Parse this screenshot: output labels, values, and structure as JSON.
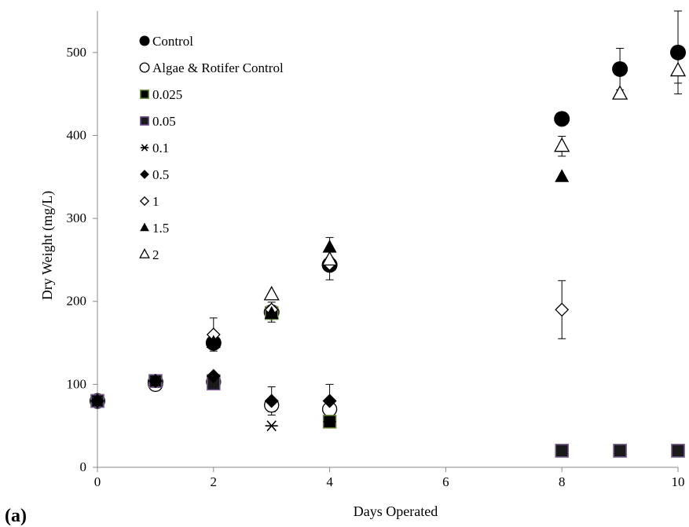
{
  "panel_label": "(a)",
  "chart_data": {
    "type": "scatter",
    "title": "",
    "xlabel": "Days Operated",
    "ylabel": "Dry Weight (mg/L)",
    "xlim": [
      0,
      10
    ],
    "ylim": [
      0,
      550
    ],
    "xticks": [
      0,
      2,
      4,
      6,
      8,
      10
    ],
    "yticks": [
      0,
      100,
      200,
      300,
      400,
      500
    ],
    "grid": false,
    "legend_position": "top-left",
    "series": [
      {
        "name": "Control",
        "marker": "circle-filled",
        "x": [
          0,
          1,
          2,
          3,
          4,
          8,
          9,
          10
        ],
        "y": [
          80,
          103,
          150,
          187,
          244,
          420,
          480,
          500
        ],
        "err": [
          0,
          0,
          5,
          12,
          18,
          0,
          25,
          50
        ]
      },
      {
        "name": "Algae & Rotifer Control",
        "marker": "circle-open",
        "x": [
          0,
          1,
          2,
          3,
          4
        ],
        "y": [
          80,
          100,
          103,
          75,
          70
        ],
        "err": [
          0,
          0,
          0,
          8,
          0
        ]
      },
      {
        "name": "0.025",
        "marker": "square-filled-green",
        "x": [
          0,
          1,
          2,
          3,
          4,
          8,
          9,
          10
        ],
        "y": [
          80,
          104,
          104,
          186,
          55,
          20,
          20,
          20
        ],
        "err": [
          0,
          0,
          0,
          0,
          0,
          0,
          0,
          0
        ]
      },
      {
        "name": "0.05",
        "marker": "square-purple",
        "x": [
          0,
          1,
          2,
          8,
          9,
          10
        ],
        "y": [
          80,
          104,
          101,
          20,
          20,
          20
        ],
        "err": [
          0,
          0,
          0,
          0,
          0,
          0
        ]
      },
      {
        "name": "0.1",
        "marker": "asterisk",
        "x": [
          0,
          1,
          2,
          3,
          4
        ],
        "y": [
          80,
          104,
          150,
          50,
          55
        ],
        "err": [
          0,
          0,
          0,
          0,
          0
        ]
      },
      {
        "name": "0.5",
        "marker": "diamond-filled",
        "x": [
          0,
          1,
          2,
          3,
          4
        ],
        "y": [
          80,
          104,
          110,
          80,
          80
        ],
        "err": [
          0,
          0,
          0,
          17,
          20
        ]
      },
      {
        "name": "1",
        "marker": "diamond-open",
        "x": [
          2,
          3,
          4,
          8
        ],
        "y": [
          160,
          190,
          245,
          190
        ],
        "err": [
          20,
          0,
          0,
          35
        ]
      },
      {
        "name": "1.5",
        "marker": "triangle-filled",
        "x": [
          2,
          3,
          4,
          8
        ],
        "y": [
          150,
          185,
          265,
          350
        ],
        "err": [
          0,
          0,
          12,
          0
        ]
      },
      {
        "name": "2",
        "marker": "triangle-open",
        "x": [
          3,
          4,
          8,
          9,
          10
        ],
        "y": [
          208,
          250,
          387,
          450,
          478
        ],
        "err": [
          0,
          0,
          12,
          0,
          15
        ]
      }
    ]
  }
}
